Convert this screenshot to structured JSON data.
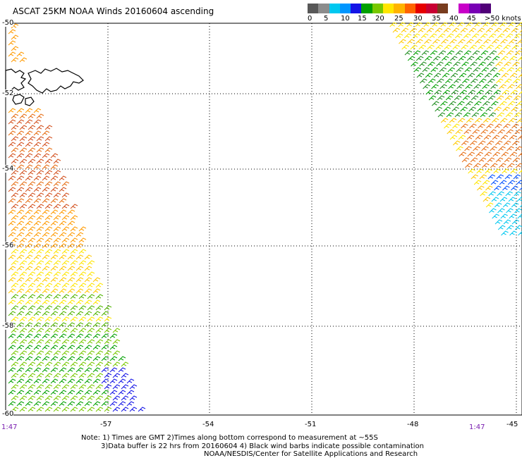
{
  "title": "ASCAT 25KM NOAA Winds 20160604 ascending",
  "scale": {
    "colors": [
      "#585858",
      "#8c8c8c",
      "#00c8f0",
      "#0096ff",
      "#1414e6",
      "#00a000",
      "#78c800",
      "#ffe600",
      "#ffb400",
      "#ff6400",
      "#e60000",
      "#c80032",
      "#783c1e",
      "#ffffff",
      "#c800c8",
      "#7800b4",
      "#500078"
    ],
    "labels": [
      "0",
      "5",
      "10",
      "15",
      "20",
      "25",
      "30",
      "35",
      "40",
      "45",
      ">50 knots"
    ]
  },
  "axes": {
    "lat_labels": [
      "-50",
      "-52",
      "-54",
      "-56",
      "-58",
      "-60"
    ],
    "lon_labels": [
      "-57",
      "-54",
      "-51",
      "-48",
      "-45"
    ]
  },
  "times": {
    "left": "1:47",
    "right": "1:47"
  },
  "notes": {
    "line1": "Note: 1) Times are GMT 2)Times along bottom correspond to measurement at ~55S",
    "line2": "3)Data buffer is 22 hrs from 20160604 4) Black wind barbs indicate possible contamination",
    "line3": "NOAA/NESDIS/Center for Satellite Applications and Research"
  },
  "swaths": {
    "left": {
      "colors": [
        "#ff9a00",
        "#e66e14",
        "#d2501e",
        "#ffc800",
        "#ffe600",
        "#00a000",
        "#50b400",
        "#78c800"
      ]
    },
    "right": {
      "colors": [
        "#ffe600",
        "#ffc800",
        "#00a000",
        "#1e8c1e",
        "#e66e14",
        "#0050ff",
        "#00c8f0"
      ]
    }
  }
}
